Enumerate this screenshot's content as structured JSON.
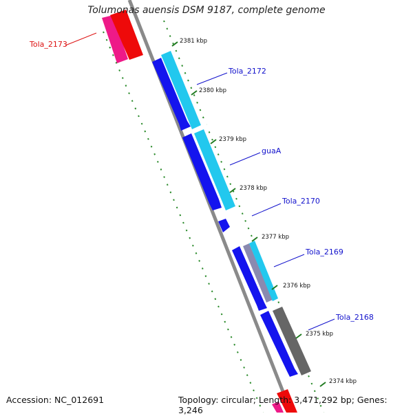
{
  "title": "Tolumonas auensis DSM 9187, complete genome",
  "footer": {
    "accession": "Accession: NC_012691",
    "topology": "Topology: circular; Length: 3,471,292 bp; Genes: 3,246"
  },
  "kbp_ticks": [
    "2381 kbp",
    "2380 kbp",
    "2379 kbp",
    "2378 kbp",
    "2377 kbp",
    "2376 kbp",
    "2375 kbp",
    "2374 kbp"
  ],
  "gene_labels": [
    "Tola_2173",
    "Tola_2172",
    "guaA",
    "Tola_2170",
    "Tola_2169",
    "Tola_2168"
  ],
  "colors": {
    "label_red": "#dd1111",
    "label_blue": "#1111cc",
    "cds_blue": "#1414ee",
    "cds_cyan": "#22c8ee",
    "gray_feature": "#666666",
    "backbone": "#888888",
    "dots": "#2a8a2a",
    "red_feature": "#ee0a0a",
    "pink_feature": "#ee1a88"
  }
}
